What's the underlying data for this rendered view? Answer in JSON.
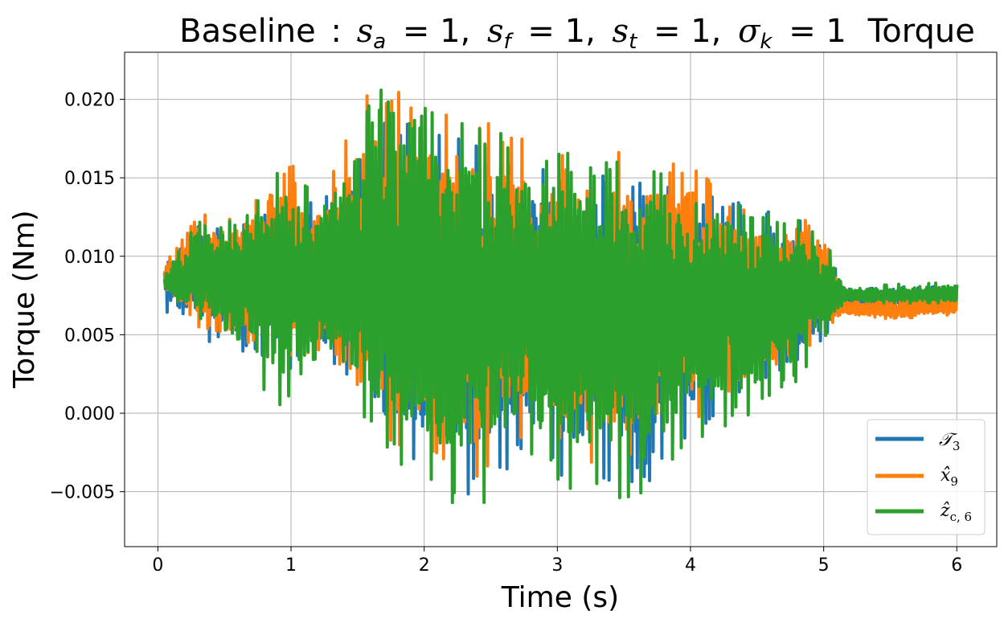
{
  "chart_data": {
    "type": "line",
    "title": "Baseline : s_a = 1, s_f = 1, s_t = 1, σ_k = 1 Torque",
    "title_parts": {
      "prefix": "Baseline",
      "colon": ":",
      "sa_var": "s",
      "sa_sub": "a",
      "sa_val": "= 1,",
      "sf_var": "s",
      "sf_sub": "f",
      "sf_val": "= 1,",
      "st_var": "s",
      "st_sub": "t",
      "st_val": "= 1,",
      "sk_var": "σ",
      "sk_sub": "k",
      "sk_val": "= 1",
      "suffix": "Torque"
    },
    "xlabel": "Time (s)",
    "ylabel": "Torque (Nm)",
    "xlim": [
      -0.25,
      6.3
    ],
    "ylim": [
      -0.0085,
      0.023
    ],
    "xticks": [
      0,
      1,
      2,
      3,
      4,
      5,
      6
    ],
    "xtick_labels": [
      "0",
      "1",
      "2",
      "3",
      "4",
      "5",
      "6"
    ],
    "yticks": [
      -0.005,
      0.0,
      0.005,
      0.01,
      0.015,
      0.02
    ],
    "ytick_labels": [
      "−0.005",
      "0.000",
      "0.005",
      "0.010",
      "0.015",
      "0.020"
    ],
    "grid": true,
    "legend_position": "lower right",
    "series": [
      {
        "name": "𝒯₃",
        "name_main": "𝒯",
        "name_sub": "3",
        "color": "#1f77b4",
        "x": [
          0.05,
          0.3,
          0.6,
          0.9,
          1.2,
          1.5,
          1.7,
          2.0,
          2.4,
          2.7,
          3.0,
          3.3,
          3.6,
          4.0,
          4.4,
          4.8,
          5.0,
          5.15,
          5.5,
          6.0
        ],
        "y": [
          0.0085,
          0.009,
          0.0088,
          0.0082,
          0.008,
          0.0085,
          0.008,
          0.0075,
          0.0072,
          0.0075,
          0.0072,
          0.0068,
          0.007,
          0.0072,
          0.0075,
          0.0078,
          0.0075,
          0.0073,
          0.0072,
          0.0073
        ],
        "lower": [
          0.0065,
          0.0045,
          0.004,
          0.0025,
          0.0035,
          0.001,
          -0.003,
          -0.004,
          -0.006,
          -0.003,
          -0.004,
          -0.005,
          -0.005,
          -0.002,
          0.0015,
          0.003,
          0.0045,
          0.0068,
          0.0066,
          0.0068
        ],
        "upper": [
          0.0095,
          0.012,
          0.0125,
          0.013,
          0.0135,
          0.0165,
          0.0185,
          0.0185,
          0.0175,
          0.0165,
          0.016,
          0.0155,
          0.015,
          0.014,
          0.0135,
          0.013,
          0.0115,
          0.008,
          0.008,
          0.0082
        ]
      },
      {
        "name": "x̂₉",
        "name_main": "x̂",
        "name_sub": "9",
        "color": "#ff7f0e",
        "x": [
          0.05,
          0.3,
          0.6,
          0.9,
          1.2,
          1.5,
          1.7,
          2.0,
          2.4,
          2.7,
          3.0,
          3.3,
          3.6,
          4.0,
          4.4,
          4.8,
          5.0,
          5.15,
          5.5,
          6.0
        ],
        "y": [
          0.0087,
          0.0092,
          0.009,
          0.0084,
          0.0082,
          0.0087,
          0.0082,
          0.0077,
          0.0074,
          0.0077,
          0.0074,
          0.007,
          0.0072,
          0.0074,
          0.0077,
          0.008,
          0.0077,
          0.0067,
          0.0065,
          0.0068
        ],
        "lower": [
          0.0075,
          0.0055,
          0.0048,
          0.0032,
          0.004,
          0.0018,
          -0.002,
          -0.003,
          -0.005,
          -0.002,
          -0.003,
          -0.004,
          -0.004,
          -0.001,
          0.0022,
          0.0035,
          0.005,
          0.0062,
          0.006,
          0.0062
        ],
        "upper": [
          0.0095,
          0.0127,
          0.0125,
          0.0165,
          0.0145,
          0.0195,
          0.0218,
          0.0198,
          0.019,
          0.0178,
          0.017,
          0.0168,
          0.0165,
          0.0165,
          0.0132,
          0.013,
          0.012,
          0.0075,
          0.0074,
          0.0078
        ]
      },
      {
        "name": "ẑ_{c,6}",
        "name_main": "ẑ",
        "name_sub": "c, 6",
        "color": "#2ca02c",
        "x": [
          0.05,
          0.3,
          0.6,
          0.9,
          1.2,
          1.5,
          1.7,
          2.0,
          2.4,
          2.7,
          3.0,
          3.3,
          3.6,
          4.0,
          4.4,
          4.8,
          5.0,
          5.15,
          5.5,
          6.0
        ],
        "y": [
          0.0082,
          0.0088,
          0.0086,
          0.008,
          0.0078,
          0.0083,
          0.0078,
          0.0073,
          0.007,
          0.0073,
          0.007,
          0.0066,
          0.0068,
          0.007,
          0.0073,
          0.0076,
          0.0073,
          0.0075,
          0.0075,
          0.0076
        ],
        "lower": [
          0.0078,
          0.006,
          0.0045,
          -0.0003,
          0.0035,
          0.0005,
          -0.003,
          -0.0045,
          -0.0072,
          -0.003,
          -0.0045,
          -0.0055,
          -0.0068,
          -0.002,
          -0.0005,
          0.0018,
          0.0045,
          0.007,
          0.007,
          0.007
        ],
        "upper": [
          0.0088,
          0.0125,
          0.0122,
          0.0162,
          0.0142,
          0.0192,
          0.0212,
          0.0195,
          0.0188,
          0.0175,
          0.0168,
          0.0165,
          0.0162,
          0.0162,
          0.013,
          0.0128,
          0.0118,
          0.0082,
          0.0082,
          0.0084
        ]
      }
    ]
  }
}
